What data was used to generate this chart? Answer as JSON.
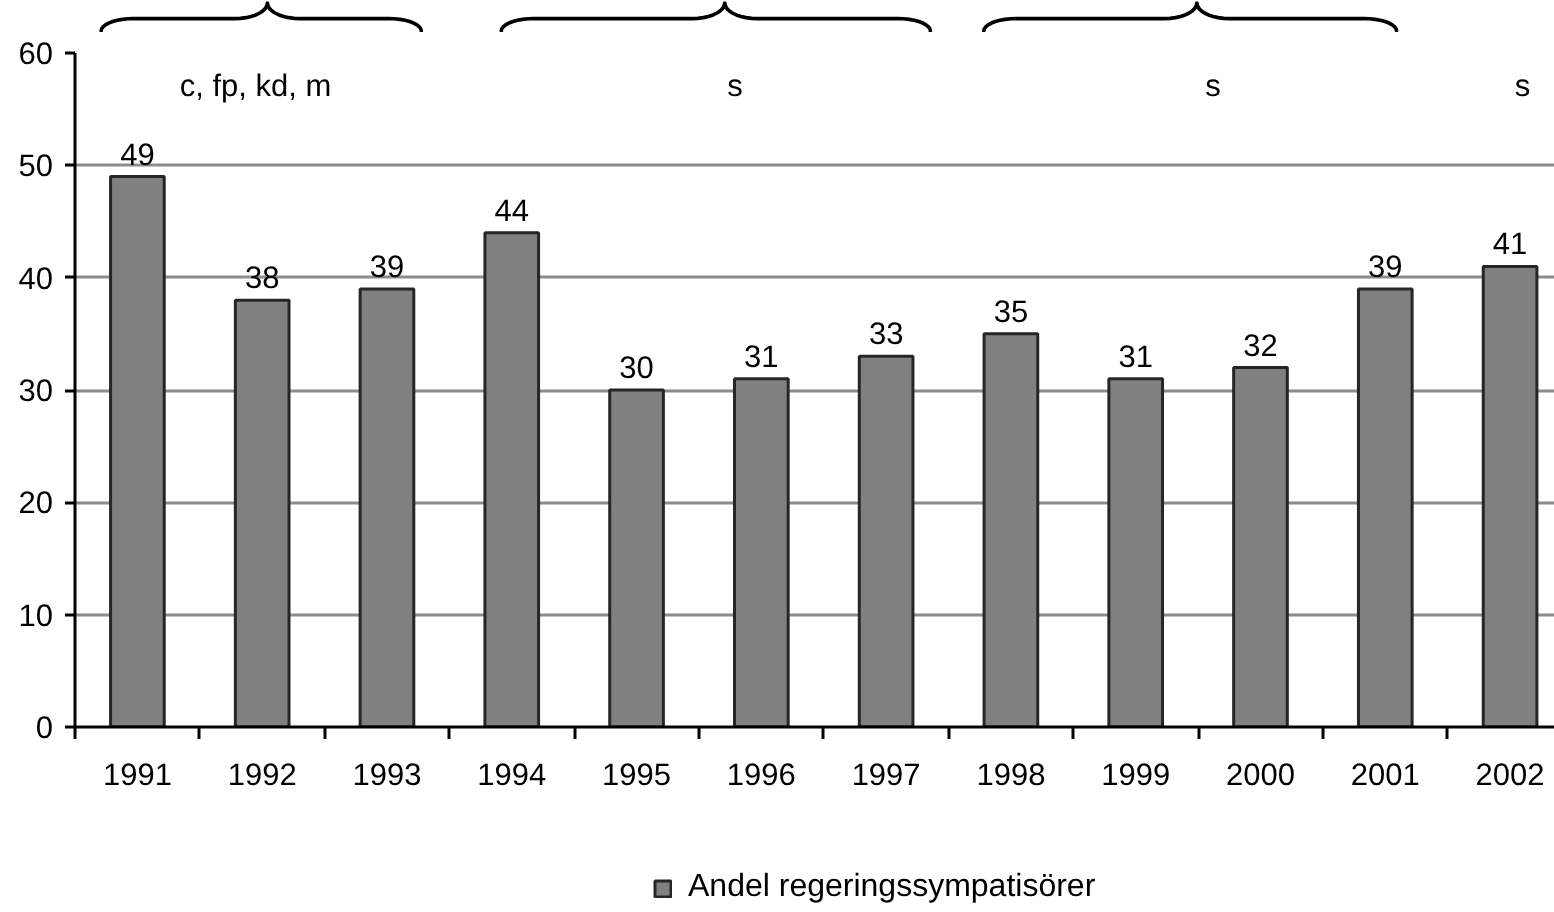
{
  "chart_data": {
    "type": "bar",
    "categories": [
      "1991",
      "1992",
      "1993",
      "1994",
      "1995",
      "1996",
      "1997",
      "1998",
      "1999",
      "2000",
      "2001",
      "2002"
    ],
    "series": [
      {
        "name": "Andel regeringssympatisörer",
        "color": "#808080",
        "values": [
          49,
          38,
          39,
          44,
          30,
          31,
          33,
          35,
          31,
          32,
          39,
          41
        ]
      }
    ],
    "ylim": [
      0,
      60
    ],
    "yticks": [
      0,
      10,
      20,
      30,
      40,
      50,
      60
    ],
    "grid": "y",
    "legend": "bottom",
    "data_labels": true,
    "annotations": [
      "c, fp, kd, m",
      "s",
      "s",
      "s"
    ]
  }
}
